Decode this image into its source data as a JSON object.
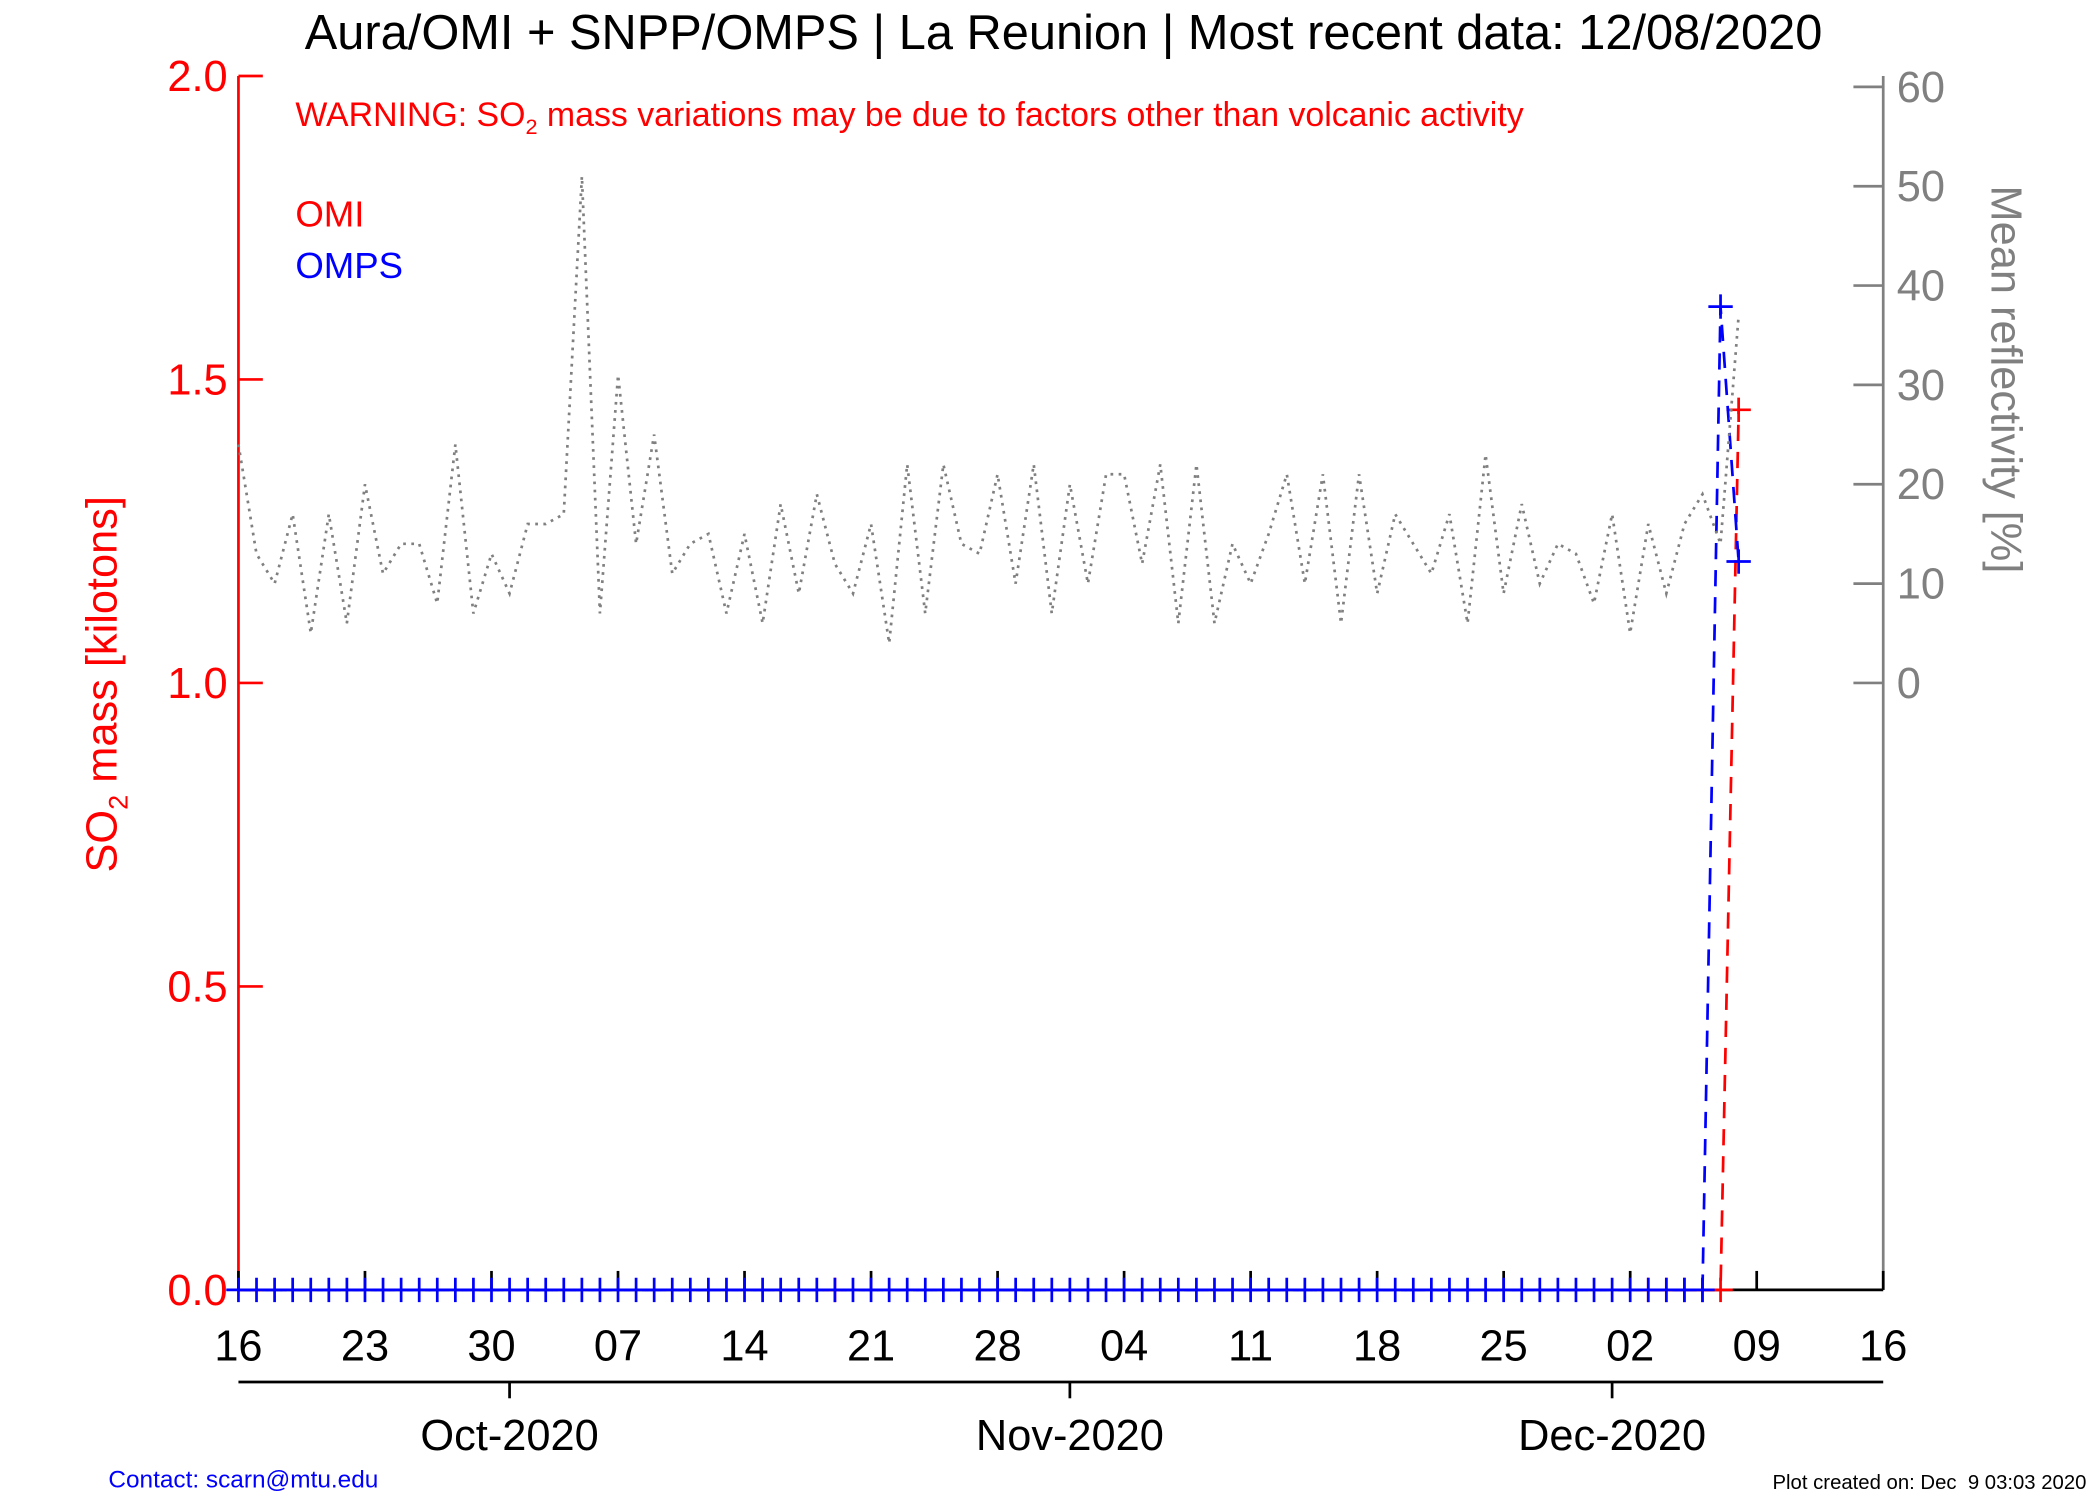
{
  "chart_data": {
    "type": "line",
    "title": "Aura/OMI + SNPP/OMPS | La Reunion | Most recent data: 12/08/2020",
    "warning": [
      "WARNING: SO",
      "2",
      " mass variations may be due to factors other than volcanic activity"
    ],
    "ylabel": [
      "SO",
      "2",
      " mass [kilotons]"
    ],
    "y2label": "Mean reflectivity [%]",
    "x": [
      "2020-09-16",
      "2020-09-17",
      "2020-09-18",
      "2020-09-19",
      "2020-09-20",
      "2020-09-21",
      "2020-09-22",
      "2020-09-23",
      "2020-09-24",
      "2020-09-25",
      "2020-09-26",
      "2020-09-27",
      "2020-09-28",
      "2020-09-29",
      "2020-09-30",
      "2020-10-01",
      "2020-10-02",
      "2020-10-03",
      "2020-10-04",
      "2020-10-05",
      "2020-10-06",
      "2020-10-07",
      "2020-10-08",
      "2020-10-09",
      "2020-10-10",
      "2020-10-11",
      "2020-10-12",
      "2020-10-13",
      "2020-10-14",
      "2020-10-15",
      "2020-10-16",
      "2020-10-17",
      "2020-10-18",
      "2020-10-19",
      "2020-10-20",
      "2020-10-21",
      "2020-10-22",
      "2020-10-23",
      "2020-10-24",
      "2020-10-25",
      "2020-10-26",
      "2020-10-27",
      "2020-10-28",
      "2020-10-29",
      "2020-10-30",
      "2020-10-31",
      "2020-11-01",
      "2020-11-02",
      "2020-11-03",
      "2020-11-04",
      "2020-11-05",
      "2020-11-06",
      "2020-11-07",
      "2020-11-08",
      "2020-11-09",
      "2020-11-10",
      "2020-11-11",
      "2020-11-12",
      "2020-11-13",
      "2020-11-14",
      "2020-11-15",
      "2020-11-16",
      "2020-11-17",
      "2020-11-18",
      "2020-11-19",
      "2020-11-20",
      "2020-11-21",
      "2020-11-22",
      "2020-11-23",
      "2020-11-24",
      "2020-11-25",
      "2020-11-26",
      "2020-11-27",
      "2020-11-28",
      "2020-11-29",
      "2020-11-30",
      "2020-12-01",
      "2020-12-02",
      "2020-12-03",
      "2020-12-04",
      "2020-12-05",
      "2020-12-06",
      "2020-12-07",
      "2020-12-08"
    ],
    "series": [
      {
        "name": "OMI",
        "color": "#ff0000",
        "values": [
          null,
          null,
          null,
          null,
          null,
          null,
          null,
          null,
          null,
          null,
          null,
          null,
          null,
          null,
          null,
          null,
          null,
          null,
          null,
          null,
          null,
          null,
          null,
          null,
          null,
          null,
          null,
          null,
          null,
          null,
          null,
          null,
          null,
          0,
          null,
          null,
          null,
          null,
          null,
          null,
          null,
          null,
          null,
          null,
          null,
          null,
          null,
          null,
          null,
          null,
          null,
          null,
          null,
          null,
          null,
          null,
          null,
          null,
          null,
          null,
          null,
          null,
          null,
          null,
          null,
          null,
          null,
          null,
          null,
          null,
          null,
          null,
          null,
          null,
          null,
          null,
          null,
          null,
          0,
          0,
          0,
          0,
          0,
          1.45
        ]
      },
      {
        "name": "OMPS",
        "color": "#0000ff",
        "values": [
          0,
          0,
          0,
          0,
          0,
          0,
          0,
          0,
          0,
          0,
          0,
          0,
          0,
          0,
          0,
          0,
          0,
          0,
          0,
          0,
          0,
          0,
          0,
          0,
          0,
          0,
          0,
          0,
          0,
          0,
          0,
          0,
          0,
          0,
          0,
          0,
          0,
          0,
          0,
          0,
          0,
          0,
          0,
          0,
          0,
          0,
          0,
          0,
          0,
          0,
          0,
          0,
          0,
          0,
          0,
          0,
          0,
          0,
          0,
          0,
          0,
          0,
          0,
          0,
          0,
          0,
          0,
          0,
          0,
          0,
          0,
          0,
          0,
          0,
          0,
          0,
          0,
          0,
          0,
          0,
          0,
          0,
          1.62,
          1.2
        ]
      },
      {
        "axis": "y2",
        "color": "#808080",
        "values": [
          24,
          13,
          10,
          17,
          5,
          17,
          6,
          20,
          11,
          14,
          14,
          8,
          24,
          7,
          13,
          9,
          16,
          16,
          17,
          51,
          7,
          31,
          14,
          25,
          11,
          14,
          15,
          7,
          15,
          6,
          18,
          9,
          19,
          12,
          9,
          16,
          4,
          22,
          7,
          22,
          14,
          13,
          21,
          10,
          22,
          7,
          20,
          10,
          21,
          21,
          12,
          22,
          6,
          22,
          6,
          14,
          10,
          15,
          21,
          10,
          21,
          6,
          21,
          9,
          17,
          14,
          11,
          17,
          6,
          23,
          9,
          18,
          10,
          14,
          13,
          8,
          17,
          5,
          16,
          9,
          16,
          19,
          14,
          37
        ]
      }
    ],
    "xlim": [
      "2020-09-16",
      "2020-12-16"
    ],
    "xticks": [
      {
        "value": "2020-09-16",
        "label": "16"
      },
      {
        "value": "2020-09-23",
        "label": "23"
      },
      {
        "value": "2020-09-30",
        "label": "30"
      },
      {
        "value": "2020-10-07",
        "label": "07"
      },
      {
        "value": "2020-10-14",
        "label": "14"
      },
      {
        "value": "2020-10-21",
        "label": "21"
      },
      {
        "value": "2020-10-28",
        "label": "28"
      },
      {
        "value": "2020-11-04",
        "label": "04"
      },
      {
        "value": "2020-11-11",
        "label": "11"
      },
      {
        "value": "2020-11-18",
        "label": "18"
      },
      {
        "value": "2020-11-25",
        "label": "25"
      },
      {
        "value": "2020-12-02",
        "label": "02"
      },
      {
        "value": "2020-12-09",
        "label": "09"
      },
      {
        "value": "2020-12-16",
        "label": "16"
      }
    ],
    "month_ticks": [
      {
        "value": "2020-10-01",
        "label": "Oct-2020"
      },
      {
        "value": "2020-11-01",
        "label": "Nov-2020"
      },
      {
        "value": "2020-12-01",
        "label": "Dec-2020"
      }
    ],
    "ylim": [
      0,
      2
    ],
    "yticks": [
      {
        "value": 0,
        "label": "0.0"
      },
      0.5,
      {
        "value": 1,
        "label": "1.0"
      },
      1.5,
      {
        "value": 2,
        "label": "2.0"
      }
    ],
    "y2lim": [
      -61.1,
      61.1
    ],
    "y2ticks": [
      0,
      10,
      20,
      30,
      40,
      50,
      60
    ],
    "y_color": "#ff0000",
    "y2_color": "#808080",
    "contact": "Contact: scarn@mtu.edu",
    "created": "Plot created on: Dec  9 03:03 2020"
  }
}
